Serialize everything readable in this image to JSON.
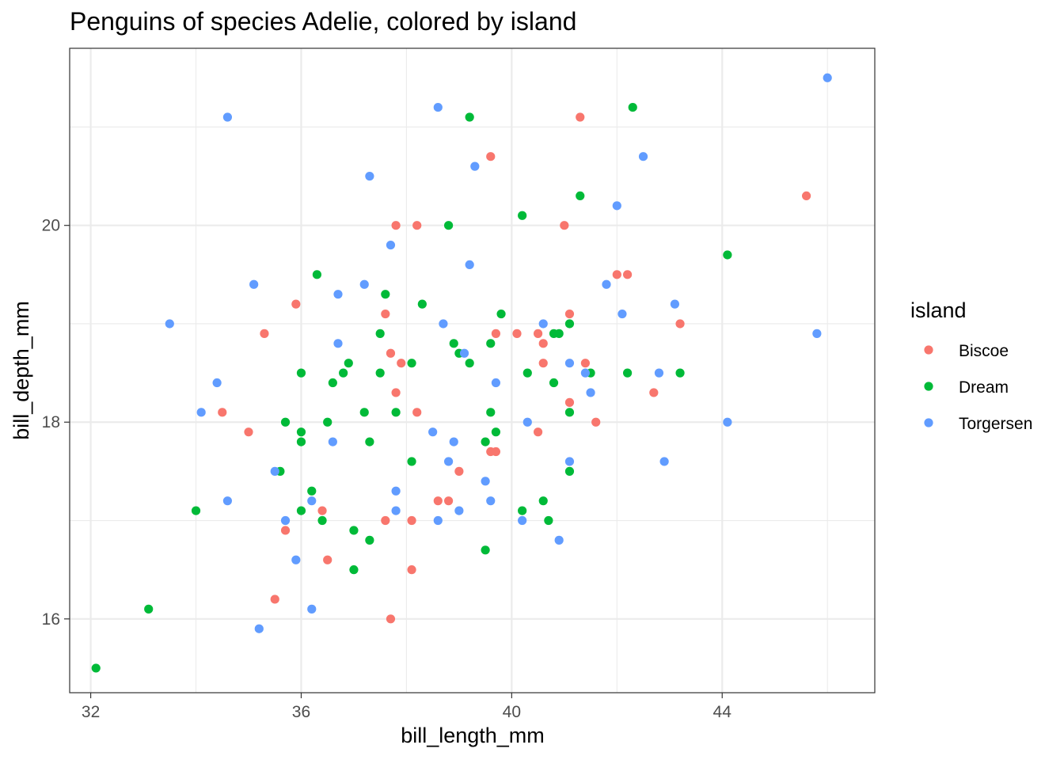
{
  "chart_data": {
    "type": "scatter",
    "title": "Penguins of species Adelie, colored by island",
    "xlabel": "bill_length_mm",
    "ylabel": "bill_depth_mm",
    "xlim": [
      31.6,
      46.9
    ],
    "ylim": [
      15.25,
      21.8
    ],
    "x_ticks": [
      32,
      36,
      40,
      44
    ],
    "y_ticks": [
      16,
      18,
      20
    ],
    "grid": true,
    "legend": {
      "title": "island",
      "placement": "right",
      "entries": [
        {
          "name": "Biscoe",
          "color": "#F8766D"
        },
        {
          "name": "Dream",
          "color": "#00BA38"
        },
        {
          "name": "Torgersen",
          "color": "#619CFF"
        }
      ]
    },
    "series": [
      {
        "name": "Biscoe",
        "color": "#F8766D",
        "points": [
          [
            34.5,
            18.1
          ],
          [
            35.0,
            17.9
          ],
          [
            35.3,
            18.9
          ],
          [
            35.5,
            16.2
          ],
          [
            35.7,
            16.9
          ],
          [
            35.9,
            19.2
          ],
          [
            36.4,
            17.1
          ],
          [
            36.5,
            16.6
          ],
          [
            37.6,
            17.0
          ],
          [
            37.6,
            19.1
          ],
          [
            37.7,
            16.0
          ],
          [
            37.7,
            18.7
          ],
          [
            37.8,
            18.3
          ],
          [
            37.8,
            20.0
          ],
          [
            37.9,
            18.6
          ],
          [
            38.1,
            17.0
          ],
          [
            38.1,
            16.5
          ],
          [
            38.2,
            18.1
          ],
          [
            38.2,
            20.0
          ],
          [
            38.6,
            17.2
          ],
          [
            38.8,
            17.2
          ],
          [
            39.0,
            17.5
          ],
          [
            39.6,
            17.7
          ],
          [
            39.6,
            20.7
          ],
          [
            39.7,
            17.7
          ],
          [
            39.7,
            18.9
          ],
          [
            40.1,
            18.9
          ],
          [
            40.5,
            18.9
          ],
          [
            40.5,
            17.9
          ],
          [
            40.6,
            18.8
          ],
          [
            40.6,
            18.6
          ],
          [
            41.0,
            20.0
          ],
          [
            41.1,
            18.2
          ],
          [
            41.1,
            19.1
          ],
          [
            41.3,
            21.1
          ],
          [
            41.4,
            18.6
          ],
          [
            41.6,
            18.0
          ],
          [
            42.0,
            19.5
          ],
          [
            42.2,
            19.5
          ],
          [
            42.7,
            18.3
          ],
          [
            43.2,
            19.0
          ],
          [
            45.6,
            20.3
          ]
        ]
      },
      {
        "name": "Dream",
        "color": "#00BA38",
        "points": [
          [
            32.1,
            15.5
          ],
          [
            33.1,
            16.1
          ],
          [
            34.0,
            17.1
          ],
          [
            35.6,
            17.5
          ],
          [
            35.7,
            18.0
          ],
          [
            36.0,
            18.5
          ],
          [
            36.0,
            17.9
          ],
          [
            36.0,
            17.8
          ],
          [
            36.0,
            17.1
          ],
          [
            36.2,
            17.3
          ],
          [
            36.3,
            19.5
          ],
          [
            36.4,
            17.0
          ],
          [
            36.5,
            18.0
          ],
          [
            36.6,
            18.4
          ],
          [
            36.8,
            18.5
          ],
          [
            36.9,
            18.6
          ],
          [
            37.0,
            16.9
          ],
          [
            37.0,
            16.5
          ],
          [
            37.2,
            18.1
          ],
          [
            37.3,
            17.8
          ],
          [
            37.3,
            16.8
          ],
          [
            37.5,
            18.9
          ],
          [
            37.5,
            18.5
          ],
          [
            37.6,
            19.3
          ],
          [
            37.8,
            18.1
          ],
          [
            38.1,
            18.6
          ],
          [
            38.1,
            17.6
          ],
          [
            38.3,
            19.2
          ],
          [
            38.8,
            20.0
          ],
          [
            38.9,
            18.8
          ],
          [
            39.0,
            18.7
          ],
          [
            39.2,
            21.1
          ],
          [
            39.2,
            18.6
          ],
          [
            39.5,
            17.8
          ],
          [
            39.5,
            16.7
          ],
          [
            39.6,
            18.1
          ],
          [
            39.6,
            18.8
          ],
          [
            39.7,
            17.9
          ],
          [
            39.8,
            19.1
          ],
          [
            40.2,
            20.1
          ],
          [
            40.2,
            17.1
          ],
          [
            40.3,
            18.5
          ],
          [
            40.6,
            17.2
          ],
          [
            40.7,
            17.0
          ],
          [
            40.8,
            18.4
          ],
          [
            40.8,
            18.9
          ],
          [
            40.9,
            18.9
          ],
          [
            41.1,
            18.1
          ],
          [
            41.1,
            19.0
          ],
          [
            41.1,
            17.5
          ],
          [
            41.3,
            20.3
          ],
          [
            41.5,
            18.5
          ],
          [
            42.2,
            18.5
          ],
          [
            42.3,
            21.2
          ],
          [
            43.2,
            18.5
          ],
          [
            44.1,
            19.7
          ]
        ]
      },
      {
        "name": "Torgersen",
        "color": "#619CFF",
        "points": [
          [
            33.5,
            19.0
          ],
          [
            34.1,
            18.1
          ],
          [
            34.4,
            18.4
          ],
          [
            34.6,
            21.1
          ],
          [
            34.6,
            17.2
          ],
          [
            35.1,
            19.4
          ],
          [
            35.2,
            15.9
          ],
          [
            35.5,
            17.5
          ],
          [
            35.7,
            17.0
          ],
          [
            35.9,
            16.6
          ],
          [
            36.2,
            17.2
          ],
          [
            36.2,
            16.1
          ],
          [
            36.6,
            17.8
          ],
          [
            36.7,
            18.8
          ],
          [
            36.7,
            19.3
          ],
          [
            37.2,
            19.4
          ],
          [
            37.3,
            20.5
          ],
          [
            37.7,
            19.8
          ],
          [
            37.8,
            17.1
          ],
          [
            37.8,
            17.3
          ],
          [
            38.5,
            17.9
          ],
          [
            38.6,
            21.2
          ],
          [
            38.6,
            17.0
          ],
          [
            38.7,
            19.0
          ],
          [
            38.8,
            17.6
          ],
          [
            38.9,
            17.8
          ],
          [
            39.0,
            17.1
          ],
          [
            39.1,
            18.7
          ],
          [
            39.2,
            19.6
          ],
          [
            39.3,
            20.6
          ],
          [
            39.5,
            17.4
          ],
          [
            39.6,
            17.2
          ],
          [
            39.7,
            18.4
          ],
          [
            40.2,
            17.0
          ],
          [
            40.3,
            18.0
          ],
          [
            40.6,
            19.0
          ],
          [
            40.9,
            16.8
          ],
          [
            41.1,
            17.6
          ],
          [
            41.1,
            18.6
          ],
          [
            41.4,
            18.5
          ],
          [
            41.5,
            18.3
          ],
          [
            41.8,
            19.4
          ],
          [
            42.0,
            20.2
          ],
          [
            42.1,
            19.1
          ],
          [
            42.5,
            20.7
          ],
          [
            42.8,
            18.5
          ],
          [
            42.9,
            17.6
          ],
          [
            43.1,
            19.2
          ],
          [
            44.1,
            18.0
          ],
          [
            45.8,
            18.9
          ],
          [
            46.0,
            21.5
          ]
        ]
      }
    ]
  }
}
